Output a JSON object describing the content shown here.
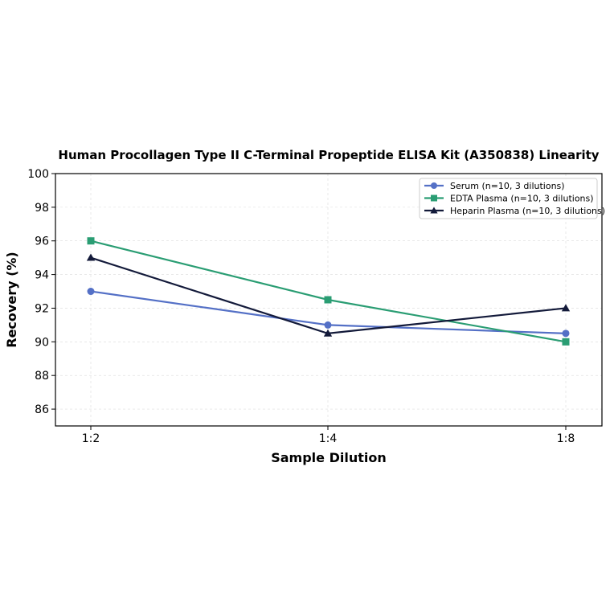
{
  "chart_data": {
    "type": "line",
    "title": "Human Procollagen Type II C-Terminal Propeptide ELISA Kit (A350838) Linearity",
    "xlabel": "Sample Dilution",
    "ylabel": "Recovery (%)",
    "categories": [
      "1:2",
      "1:4",
      "1:8"
    ],
    "ylim": [
      85,
      100
    ],
    "yticks": [
      86,
      88,
      90,
      92,
      94,
      96,
      98,
      100
    ],
    "grid": true,
    "legend_position": "top-right",
    "series": [
      {
        "name": "Serum (n=10, 3 dilutions)",
        "values": [
          93,
          91,
          90.5
        ],
        "color": "#5470c6",
        "marker": "circle"
      },
      {
        "name": "EDTA Plasma (n=10, 3 dilutions)",
        "values": [
          96,
          92.5,
          90
        ],
        "color": "#2a9d73",
        "marker": "square"
      },
      {
        "name": "Heparin Plasma (n=10, 3 dilutions)",
        "values": [
          95,
          90.5,
          92
        ],
        "color": "#131a3a",
        "marker": "triangle"
      }
    ]
  }
}
